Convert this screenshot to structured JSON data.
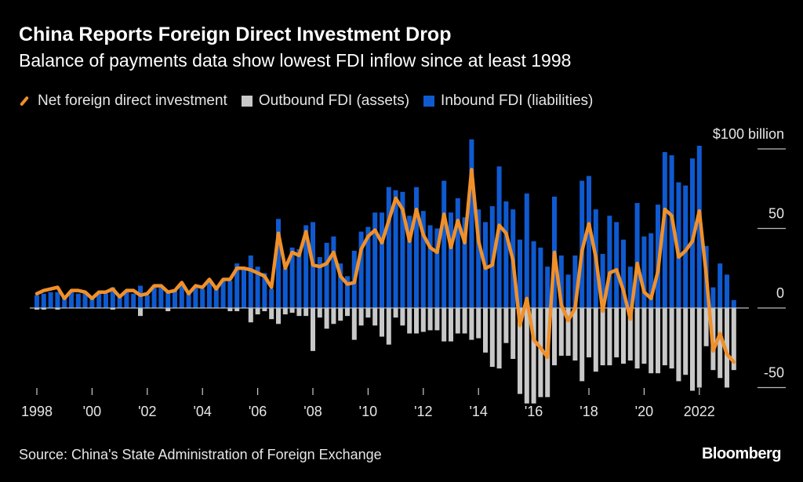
{
  "title": "China Reports Foreign Direct Investment Drop",
  "subtitle": "Balance of payments data show lowest FDI inflow since at least 1998",
  "source": "Source: China's State Administration of Foreign Exchange",
  "logo": "Bloomberg",
  "colors": {
    "net": "#f0902a",
    "outbound": "#c8c8c8",
    "inbound": "#0f5ad0"
  },
  "chart_data": {
    "type": "bar+line",
    "frequency": "quarterly",
    "x_start": "1998 Q1",
    "x_end": "2023 Q2",
    "x_tick_labels": [
      "1998",
      "'00",
      "'02",
      "'04",
      "'06",
      "'08",
      "'10",
      "'12",
      "'14",
      "'16",
      "'18",
      "'20",
      "2022"
    ],
    "x_tick_years": [
      1998,
      2000,
      2002,
      2004,
      2006,
      2008,
      2010,
      2012,
      2014,
      2016,
      2018,
      2020,
      2022
    ],
    "y_ticks": [
      100,
      50,
      0,
      -50
    ],
    "y_tick_labels": [
      "$100 billion",
      "50",
      "0",
      "-50"
    ],
    "ylim": [
      -60,
      110
    ],
    "legend_position": "top",
    "series": [
      {
        "name": "Net foreign direct investment",
        "type": "line",
        "values": [
          9,
          11,
          12,
          13,
          6,
          11,
          11,
          10,
          6,
          10,
          10,
          12,
          7,
          11,
          11,
          8,
          9,
          14,
          14,
          10,
          11,
          16,
          9,
          14,
          13,
          18,
          12,
          18,
          18,
          25,
          25,
          24,
          22,
          20,
          13,
          47,
          25,
          35,
          33,
          48,
          27,
          26,
          28,
          35,
          20,
          15,
          16,
          37,
          45,
          49,
          41,
          55,
          69,
          62,
          42,
          62,
          46,
          38,
          35,
          59,
          38,
          55,
          41,
          87,
          42,
          25,
          27,
          52,
          47,
          30,
          -11,
          6,
          -20,
          -25,
          -31,
          35,
          2,
          -8,
          0,
          36,
          53,
          32,
          -2,
          22,
          24,
          11,
          -7,
          28,
          10,
          6,
          23,
          62,
          58,
          32,
          36,
          42,
          61,
          21,
          -27,
          -16,
          -29,
          -34
        ]
      },
      {
        "name": "Outbound FDI (assets)",
        "type": "bar",
        "values": [
          -1,
          -1,
          0,
          -1,
          0,
          0,
          0,
          0,
          0,
          0,
          0,
          -1,
          0,
          0,
          0,
          -5,
          0,
          0,
          0,
          -2,
          0,
          0,
          0,
          0,
          0,
          0,
          0,
          0,
          -2,
          -2,
          0,
          -9,
          -4,
          -2,
          -7,
          -10,
          -4,
          -3,
          -5,
          -5,
          -27,
          -6,
          -13,
          -10,
          -8,
          -5,
          -20,
          -11,
          -6,
          -11,
          -18,
          -23,
          -6,
          -11,
          -16,
          -16,
          -15,
          -14,
          -14,
          -21,
          -21,
          -16,
          -16,
          -20,
          -19,
          -28,
          -37,
          -38,
          -22,
          -32,
          -54,
          -60,
          -60,
          -56,
          -56,
          -36,
          -30,
          -30,
          -33,
          -46,
          -31,
          -40,
          -36,
          -36,
          -31,
          -35,
          -33,
          -38,
          -35,
          -41,
          -41,
          -36,
          -38,
          -46,
          -42,
          -52,
          -50,
          -24,
          -39,
          -44,
          -50,
          -39
        ]
      },
      {
        "name": "Inbound FDI (liabilities)",
        "type": "bar",
        "values": [
          8,
          9,
          10,
          10,
          7,
          10,
          9,
          10,
          6,
          10,
          9,
          13,
          7,
          11,
          9,
          14,
          8,
          14,
          13,
          10,
          11,
          16,
          9,
          14,
          12,
          18,
          13,
          18,
          17,
          28,
          24,
          33,
          26,
          22,
          12,
          56,
          25,
          38,
          37,
          52,
          54,
          32,
          41,
          45,
          28,
          20,
          36,
          48,
          51,
          60,
          60,
          76,
          74,
          73,
          58,
          76,
          61,
          52,
          50,
          80,
          60,
          69,
          57,
          106,
          62,
          54,
          64,
          89,
          67,
          62,
          43,
          72,
          42,
          38,
          26,
          70,
          33,
          21,
          33,
          80,
          83,
          62,
          34,
          58,
          54,
          43,
          26,
          66,
          45,
          47,
          65,
          98,
          96,
          79,
          77,
          94,
          102,
          39,
          13,
          28,
          21,
          5
        ]
      }
    ]
  }
}
